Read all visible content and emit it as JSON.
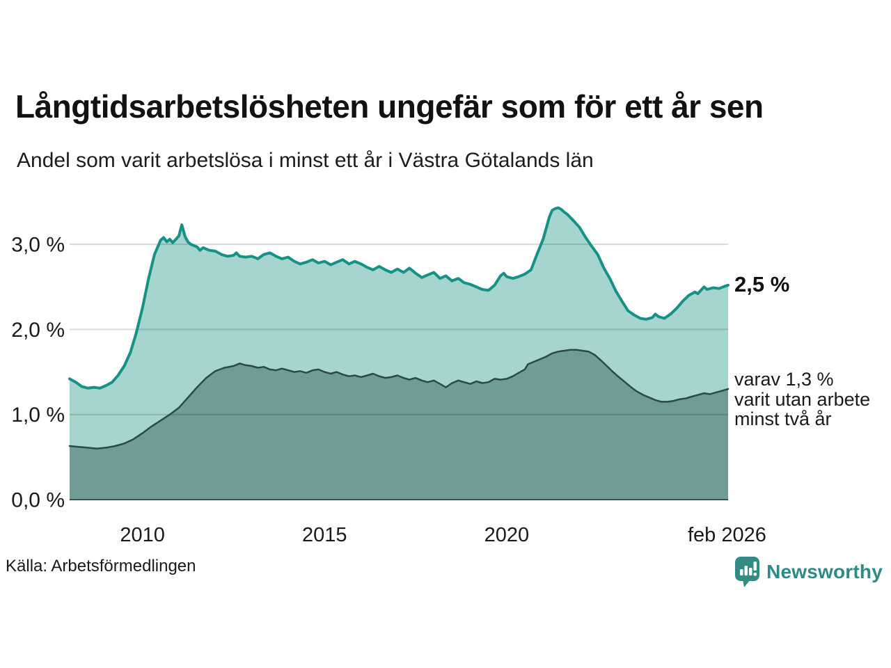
{
  "header": {
    "title": "Långtidsarbetslösheten ungefär som för ett år sen",
    "subtitle": "Andel som varit arbetslösa i minst ett år i Västra Götalands län"
  },
  "annotations": {
    "latest_value_label": "2,5 %",
    "secondary_lines": [
      "varav 1,3 %",
      "varit utan arbete",
      "minst två år"
    ]
  },
  "footer": {
    "source": "Källa: Arbetsförmedlingen",
    "brand": "Newsworthy"
  },
  "colors": {
    "line_primary": "#169186",
    "fill_primary": "#a5d5ce",
    "line_secondary": "#2b4a45",
    "fill_secondary": "#6f9c97",
    "baseline": "#3a5551",
    "gridline": "rgba(0,0,0,0.15)",
    "brand_teal": "#2e8a84"
  },
  "chart_data": {
    "type": "area",
    "title": "Långtidsarbetslösheten ungefär som för ett år sen",
    "subtitle": "Andel som varit arbetslösa i minst ett år i Västra Götalands län",
    "xlim": [
      2008.0,
      2026.08
    ],
    "ylim": [
      0,
      3.5
    ],
    "grid": "horizontal",
    "x_ticks": [
      {
        "label": "2010",
        "x": 2010
      },
      {
        "label": "2015",
        "x": 2015
      },
      {
        "label": "2020",
        "x": 2020
      },
      {
        "label": "feb 2026",
        "x": 2026.05
      }
    ],
    "y_ticks": [
      {
        "label": "0,0 %",
        "value": 0.0
      },
      {
        "label": "1,0 %",
        "value": 1.0
      },
      {
        "label": "2,0 %",
        "value": 2.0
      },
      {
        "label": "3,0 %",
        "value": 3.0
      }
    ],
    "series": [
      {
        "name": "Andel arbetslösa minst ett år",
        "end_label": "2,5 %",
        "end_value": 2.5,
        "line_color": "#169186",
        "fill_color": "#a5d5ce",
        "line_width": 4,
        "points": [
          [
            2008.0,
            1.42
          ],
          [
            2008.17,
            1.38
          ],
          [
            2008.33,
            1.33
          ],
          [
            2008.5,
            1.31
          ],
          [
            2008.67,
            1.32
          ],
          [
            2008.83,
            1.31
          ],
          [
            2009.0,
            1.34
          ],
          [
            2009.17,
            1.38
          ],
          [
            2009.33,
            1.46
          ],
          [
            2009.5,
            1.57
          ],
          [
            2009.67,
            1.73
          ],
          [
            2009.83,
            1.96
          ],
          [
            2010.0,
            2.25
          ],
          [
            2010.17,
            2.6
          ],
          [
            2010.33,
            2.88
          ],
          [
            2010.5,
            3.05
          ],
          [
            2010.58,
            3.08
          ],
          [
            2010.67,
            3.03
          ],
          [
            2010.75,
            3.06
          ],
          [
            2010.83,
            3.02
          ],
          [
            2010.92,
            3.06
          ],
          [
            2011.0,
            3.1
          ],
          [
            2011.08,
            3.23
          ],
          [
            2011.17,
            3.09
          ],
          [
            2011.25,
            3.03
          ],
          [
            2011.33,
            3.0
          ],
          [
            2011.5,
            2.97
          ],
          [
            2011.58,
            2.93
          ],
          [
            2011.67,
            2.96
          ],
          [
            2011.83,
            2.93
          ],
          [
            2012.0,
            2.92
          ],
          [
            2012.17,
            2.88
          ],
          [
            2012.33,
            2.86
          ],
          [
            2012.5,
            2.87
          ],
          [
            2012.58,
            2.9
          ],
          [
            2012.67,
            2.86
          ],
          [
            2012.83,
            2.85
          ],
          [
            2013.0,
            2.86
          ],
          [
            2013.17,
            2.83
          ],
          [
            2013.33,
            2.88
          ],
          [
            2013.5,
            2.9
          ],
          [
            2013.67,
            2.86
          ],
          [
            2013.83,
            2.83
          ],
          [
            2014.0,
            2.85
          ],
          [
            2014.17,
            2.8
          ],
          [
            2014.33,
            2.77
          ],
          [
            2014.5,
            2.79
          ],
          [
            2014.67,
            2.82
          ],
          [
            2014.83,
            2.78
          ],
          [
            2015.0,
            2.8
          ],
          [
            2015.17,
            2.76
          ],
          [
            2015.33,
            2.79
          ],
          [
            2015.5,
            2.82
          ],
          [
            2015.67,
            2.77
          ],
          [
            2015.83,
            2.8
          ],
          [
            2016.0,
            2.77
          ],
          [
            2016.17,
            2.73
          ],
          [
            2016.33,
            2.7
          ],
          [
            2016.5,
            2.74
          ],
          [
            2016.67,
            2.7
          ],
          [
            2016.83,
            2.67
          ],
          [
            2017.0,
            2.71
          ],
          [
            2017.17,
            2.67
          ],
          [
            2017.33,
            2.72
          ],
          [
            2017.5,
            2.66
          ],
          [
            2017.67,
            2.61
          ],
          [
            2017.83,
            2.64
          ],
          [
            2018.0,
            2.67
          ],
          [
            2018.17,
            2.6
          ],
          [
            2018.33,
            2.63
          ],
          [
            2018.5,
            2.57
          ],
          [
            2018.67,
            2.6
          ],
          [
            2018.83,
            2.55
          ],
          [
            2019.0,
            2.53
          ],
          [
            2019.17,
            2.5
          ],
          [
            2019.33,
            2.47
          ],
          [
            2019.5,
            2.46
          ],
          [
            2019.67,
            2.52
          ],
          [
            2019.83,
            2.63
          ],
          [
            2019.92,
            2.66
          ],
          [
            2020.0,
            2.62
          ],
          [
            2020.17,
            2.6
          ],
          [
            2020.33,
            2.62
          ],
          [
            2020.5,
            2.65
          ],
          [
            2020.67,
            2.7
          ],
          [
            2020.83,
            2.88
          ],
          [
            2021.0,
            3.06
          ],
          [
            2021.08,
            3.18
          ],
          [
            2021.17,
            3.32
          ],
          [
            2021.25,
            3.4
          ],
          [
            2021.33,
            3.42
          ],
          [
            2021.42,
            3.43
          ],
          [
            2021.5,
            3.41
          ],
          [
            2021.58,
            3.38
          ],
          [
            2021.67,
            3.35
          ],
          [
            2021.83,
            3.28
          ],
          [
            2022.0,
            3.2
          ],
          [
            2022.17,
            3.08
          ],
          [
            2022.33,
            2.98
          ],
          [
            2022.5,
            2.88
          ],
          [
            2022.67,
            2.72
          ],
          [
            2022.83,
            2.6
          ],
          [
            2023.0,
            2.45
          ],
          [
            2023.17,
            2.33
          ],
          [
            2023.33,
            2.22
          ],
          [
            2023.5,
            2.17
          ],
          [
            2023.67,
            2.13
          ],
          [
            2023.83,
            2.12
          ],
          [
            2024.0,
            2.14
          ],
          [
            2024.08,
            2.18
          ],
          [
            2024.17,
            2.15
          ],
          [
            2024.33,
            2.13
          ],
          [
            2024.5,
            2.18
          ],
          [
            2024.67,
            2.25
          ],
          [
            2024.83,
            2.33
          ],
          [
            2025.0,
            2.4
          ],
          [
            2025.17,
            2.44
          ],
          [
            2025.25,
            2.42
          ],
          [
            2025.33,
            2.46
          ],
          [
            2025.42,
            2.5
          ],
          [
            2025.5,
            2.47
          ],
          [
            2025.67,
            2.49
          ],
          [
            2025.83,
            2.48
          ],
          [
            2026.0,
            2.51
          ],
          [
            2026.08,
            2.52
          ]
        ]
      },
      {
        "name": "varav varit utan arbete minst två år",
        "end_label": "varav 1,3 % varit utan arbete minst två år",
        "end_value": 1.3,
        "line_color": "#2b4a45",
        "fill_color": "#6f9c97",
        "line_width": 2.5,
        "points": [
          [
            2008.0,
            0.63
          ],
          [
            2008.25,
            0.62
          ],
          [
            2008.5,
            0.61
          ],
          [
            2008.75,
            0.6
          ],
          [
            2009.0,
            0.61
          ],
          [
            2009.25,
            0.63
          ],
          [
            2009.5,
            0.66
          ],
          [
            2009.75,
            0.71
          ],
          [
            2010.0,
            0.78
          ],
          [
            2010.25,
            0.86
          ],
          [
            2010.5,
            0.93
          ],
          [
            2010.75,
            1.0
          ],
          [
            2011.0,
            1.08
          ],
          [
            2011.25,
            1.2
          ],
          [
            2011.5,
            1.32
          ],
          [
            2011.75,
            1.43
          ],
          [
            2012.0,
            1.51
          ],
          [
            2012.25,
            1.55
          ],
          [
            2012.5,
            1.57
          ],
          [
            2012.67,
            1.6
          ],
          [
            2012.83,
            1.58
          ],
          [
            2013.0,
            1.57
          ],
          [
            2013.17,
            1.55
          ],
          [
            2013.33,
            1.56
          ],
          [
            2013.5,
            1.53
          ],
          [
            2013.67,
            1.52
          ],
          [
            2013.83,
            1.54
          ],
          [
            2014.0,
            1.52
          ],
          [
            2014.17,
            1.5
          ],
          [
            2014.33,
            1.51
          ],
          [
            2014.5,
            1.49
          ],
          [
            2014.67,
            1.52
          ],
          [
            2014.83,
            1.53
          ],
          [
            2015.0,
            1.5
          ],
          [
            2015.17,
            1.48
          ],
          [
            2015.33,
            1.5
          ],
          [
            2015.5,
            1.47
          ],
          [
            2015.67,
            1.45
          ],
          [
            2015.83,
            1.46
          ],
          [
            2016.0,
            1.44
          ],
          [
            2016.17,
            1.46
          ],
          [
            2016.33,
            1.48
          ],
          [
            2016.5,
            1.45
          ],
          [
            2016.67,
            1.43
          ],
          [
            2016.83,
            1.44
          ],
          [
            2017.0,
            1.46
          ],
          [
            2017.17,
            1.43
          ],
          [
            2017.33,
            1.41
          ],
          [
            2017.5,
            1.43
          ],
          [
            2017.67,
            1.4
          ],
          [
            2017.83,
            1.38
          ],
          [
            2018.0,
            1.4
          ],
          [
            2018.17,
            1.36
          ],
          [
            2018.33,
            1.32
          ],
          [
            2018.5,
            1.37
          ],
          [
            2018.67,
            1.4
          ],
          [
            2018.83,
            1.38
          ],
          [
            2019.0,
            1.36
          ],
          [
            2019.17,
            1.39
          ],
          [
            2019.33,
            1.37
          ],
          [
            2019.5,
            1.38
          ],
          [
            2019.67,
            1.42
          ],
          [
            2019.83,
            1.41
          ],
          [
            2020.0,
            1.42
          ],
          [
            2020.17,
            1.45
          ],
          [
            2020.33,
            1.49
          ],
          [
            2020.5,
            1.53
          ],
          [
            2020.58,
            1.59
          ],
          [
            2020.75,
            1.62
          ],
          [
            2020.92,
            1.65
          ],
          [
            2021.08,
            1.68
          ],
          [
            2021.25,
            1.72
          ],
          [
            2021.42,
            1.74
          ],
          [
            2021.58,
            1.75
          ],
          [
            2021.75,
            1.76
          ],
          [
            2021.92,
            1.76
          ],
          [
            2022.08,
            1.75
          ],
          [
            2022.25,
            1.74
          ],
          [
            2022.42,
            1.7
          ],
          [
            2022.58,
            1.64
          ],
          [
            2022.75,
            1.57
          ],
          [
            2022.92,
            1.5
          ],
          [
            2023.08,
            1.44
          ],
          [
            2023.25,
            1.38
          ],
          [
            2023.42,
            1.32
          ],
          [
            2023.58,
            1.27
          ],
          [
            2023.75,
            1.23
          ],
          [
            2023.92,
            1.2
          ],
          [
            2024.08,
            1.17
          ],
          [
            2024.25,
            1.15
          ],
          [
            2024.42,
            1.15
          ],
          [
            2024.58,
            1.16
          ],
          [
            2024.75,
            1.18
          ],
          [
            2024.92,
            1.19
          ],
          [
            2025.08,
            1.21
          ],
          [
            2025.25,
            1.23
          ],
          [
            2025.42,
            1.25
          ],
          [
            2025.58,
            1.24
          ],
          [
            2025.75,
            1.26
          ],
          [
            2025.92,
            1.28
          ],
          [
            2026.08,
            1.3
          ]
        ]
      }
    ]
  }
}
